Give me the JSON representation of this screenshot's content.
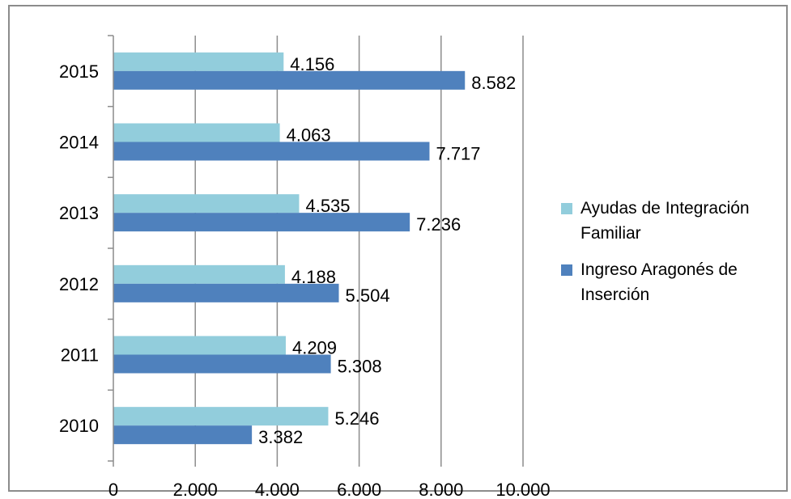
{
  "chart_data": {
    "type": "bar",
    "orientation": "horizontal",
    "categories": [
      "2010",
      "2011",
      "2012",
      "2013",
      "2014",
      "2015"
    ],
    "series": [
      {
        "name": "Ayudas de Integración Familiar",
        "color": "#92cddc",
        "values": [
          5246,
          4209,
          4188,
          4535,
          4063,
          4156
        ],
        "labels": [
          "5.246",
          "4.209",
          "4.188",
          "4.535",
          "4.063",
          "4.156"
        ]
      },
      {
        "name": "Ingreso Aragonés de Inserción",
        "color": "#4f81bd",
        "values": [
          3382,
          5308,
          5504,
          7236,
          7717,
          8582
        ],
        "labels": [
          "3.382",
          "5.308",
          "5.504",
          "7.236",
          "7.717",
          "8.582"
        ]
      }
    ],
    "xlim": [
      0,
      10000
    ],
    "x_ticks": [
      0,
      2000,
      4000,
      6000,
      8000,
      10000
    ],
    "x_tick_labels": [
      "0",
      "2.000",
      "4.000",
      "6.000",
      "8.000",
      "10.000"
    ],
    "grid": true,
    "legend_position": "right",
    "title": "",
    "xlabel": "",
    "ylabel": ""
  }
}
